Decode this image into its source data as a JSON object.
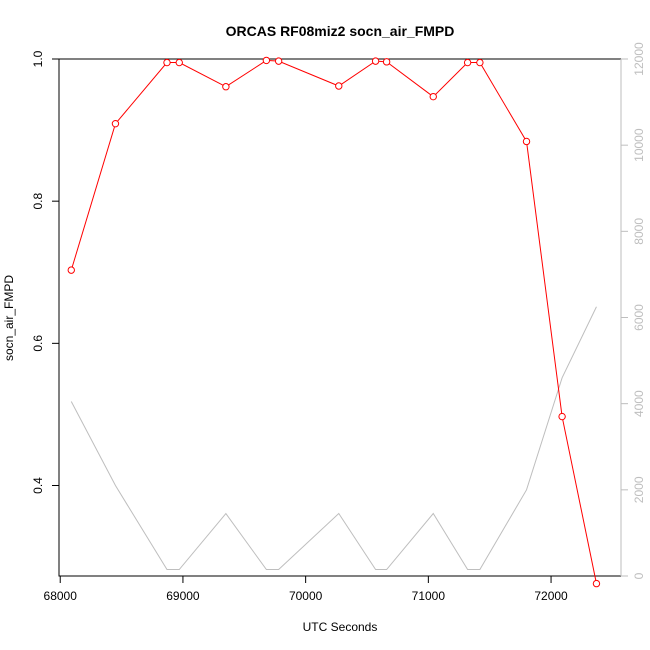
{
  "chart_data": {
    "type": "line",
    "title": "ORCAS RF08miz2 socn_air_FMPD",
    "xlabel": "UTC Seconds",
    "ylabel": "socn_air_FMPD",
    "xlim": [
      67990,
      72570
    ],
    "ylim": [
      0.2727,
      1.0
    ],
    "y2lim": [
      0,
      12000
    ],
    "x_ticks": [
      68000,
      69000,
      70000,
      71000,
      72000
    ],
    "y_ticks": [
      0.4,
      0.6,
      0.8,
      1.0
    ],
    "y2_ticks": [
      0,
      2000,
      4000,
      6000,
      8000,
      10000,
      12000
    ],
    "x_tick_labels": [
      "68000",
      "69000",
      "70000",
      "71000",
      "72000"
    ],
    "y_tick_labels": [
      "0.4",
      "0.6",
      "0.8",
      "1.0"
    ],
    "y2_tick_labels": [
      "0",
      "2000",
      "4000",
      "6000",
      "8000",
      "10000",
      "12000"
    ],
    "grid": false,
    "series": [
      {
        "axis": "left",
        "color": "#ff0000",
        "marker": "open-circle",
        "x": [
          68090,
          68450,
          68870,
          68970,
          69350,
          69680,
          69780,
          70270,
          70570,
          70660,
          71040,
          71320,
          71420,
          71800,
          72090,
          72370
        ],
        "values": [
          0.703,
          0.909,
          0.995,
          0.995,
          0.961,
          0.998,
          0.997,
          0.962,
          0.997,
          0.996,
          0.947,
          0.995,
          0.995,
          0.884,
          0.497,
          0.262
        ]
      },
      {
        "axis": "right",
        "color": "#bebebe",
        "marker": "none",
        "x": [
          68090,
          68450,
          68870,
          68970,
          69350,
          69680,
          69780,
          70270,
          70570,
          70660,
          71040,
          71320,
          71420,
          71800,
          72090,
          72370
        ],
        "values": [
          4050,
          2100,
          150,
          150,
          1450,
          150,
          150,
          1450,
          150,
          150,
          1450,
          150,
          150,
          2000,
          4600,
          6250
        ]
      }
    ]
  }
}
